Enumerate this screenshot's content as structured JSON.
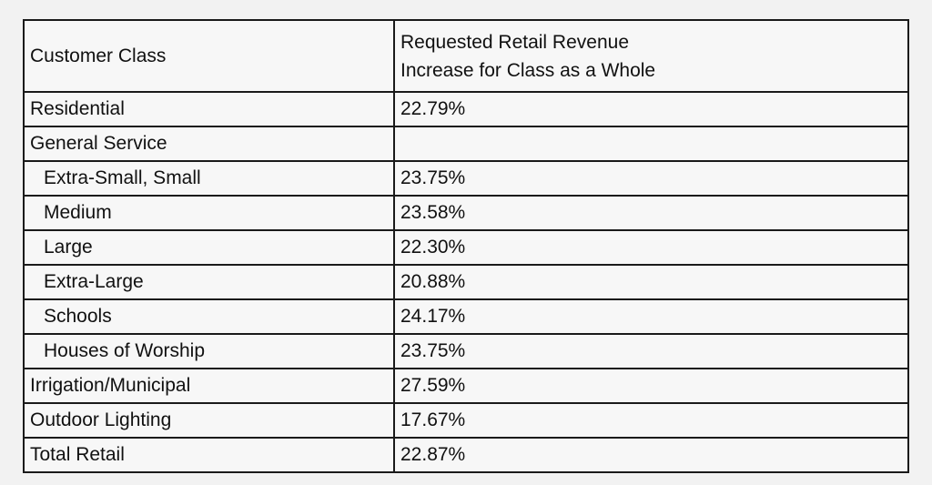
{
  "table": {
    "header": {
      "col1": "Customer Class",
      "col2_line1": "Requested Retail Revenue",
      "col2_line2": "Increase for Class as a Whole"
    },
    "rows": [
      {
        "label": "Residential",
        "value": "22.79%",
        "bold": true,
        "indent": false
      },
      {
        "label": "General Service",
        "value": "",
        "bold": true,
        "indent": false
      },
      {
        "label": "Extra-Small, Small",
        "value": "23.75%",
        "bold": false,
        "indent": true
      },
      {
        "label": "Medium",
        "value": "23.58%",
        "bold": false,
        "indent": true
      },
      {
        "label": "Large",
        "value": "22.30%",
        "bold": false,
        "indent": true
      },
      {
        "label": "Extra-Large",
        "value": "20.88%",
        "bold": false,
        "indent": true
      },
      {
        "label": "Schools",
        "value": "24.17%",
        "bold": false,
        "indent": true
      },
      {
        "label": "Houses of Worship",
        "value": "23.75%",
        "bold": false,
        "indent": true
      },
      {
        "label": "Irrigation/Municipal",
        "value": "27.59%",
        "bold": false,
        "indent": false
      },
      {
        "label": "Outdoor Lighting",
        "value": "17.67%",
        "bold": false,
        "indent": false
      },
      {
        "label": "Total Retail",
        "value": "22.87%",
        "bold": true,
        "indent": false,
        "value_bold": true
      }
    ]
  }
}
